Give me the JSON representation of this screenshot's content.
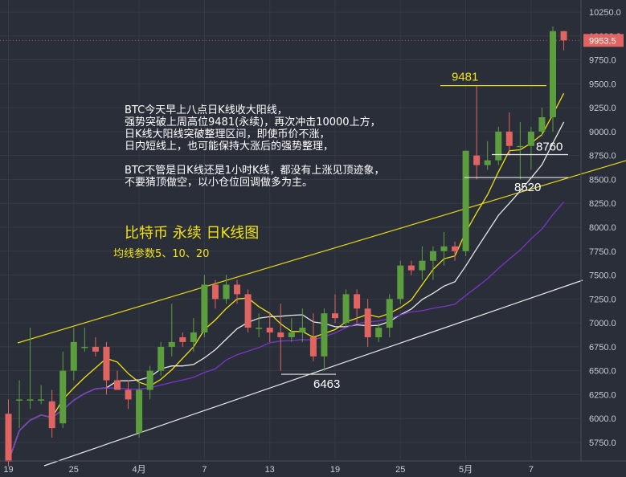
{
  "chart_data": {
    "type": "candlestick",
    "title": "比特币 永续 日K线图",
    "subtitle": "均线参数5、10、20",
    "annotation_lines": [
      "BTC今天早上八点日K线收大阳线，",
      "强势突破上周高位9481(永续)，再次冲击10000上方，",
      "日K线大阳线突破整理区间，即使币价不涨，",
      "日内短线上，也可能保持大涨后的强势整理，",
      "BTC不管是日K线还是1小时K线，都没有上涨见顶迹象，",
      "不要猜顶做空，以小仓位回调做多为主。"
    ],
    "ylim": [
      5500,
      10300
    ],
    "y_ticks": [
      10250,
      10000,
      9750,
      9500,
      9250,
      9000,
      8750,
      8500,
      8250,
      8000,
      7750,
      7500,
      7250,
      7000,
      6750,
      6500,
      6250,
      6000,
      5750
    ],
    "y_tick_labels": [
      "10250.0",
      "10000.0",
      "9750.0",
      "9500.0",
      "9250.0",
      "9000.0",
      "8750.0",
      "8500.0",
      "8250.0",
      "8000.0",
      "7750.0",
      "7500.0",
      "7250.0",
      "7000.0",
      "6750.0",
      "6500.0",
      "6250.0",
      "6000.0",
      "5750.0"
    ],
    "x_tick_labels": [
      {
        "i": 0,
        "label": "19"
      },
      {
        "i": 6,
        "label": "25"
      },
      {
        "i": 12,
        "label": "4月"
      },
      {
        "i": 18,
        "label": "7"
      },
      {
        "i": 24,
        "label": "13"
      },
      {
        "i": 30,
        "label": "19"
      },
      {
        "i": 36,
        "label": "25"
      },
      {
        "i": 42,
        "label": "5月"
      },
      {
        "i": 48,
        "label": "7"
      }
    ],
    "last_price": "9953.5",
    "level_labels": [
      {
        "text": "9481",
        "value": 9481
      },
      {
        "text": "8760",
        "value": 8760
      },
      {
        "text": "8520",
        "value": 8520
      },
      {
        "text": "6463",
        "value": 6463
      }
    ],
    "candles": [
      [
        6050,
        6200,
        5500,
        5550
      ],
      [
        6200,
        6400,
        5900,
        6200
      ],
      [
        6200,
        6950,
        6100,
        6200
      ],
      [
        6200,
        6350,
        6150,
        6200
      ],
      [
        6180,
        6300,
        5800,
        5900
      ],
      [
        5950,
        6700,
        5900,
        6500
      ],
      [
        6500,
        6950,
        6400,
        6800
      ],
      [
        6750,
        6950,
        6700,
        6750
      ],
      [
        6750,
        6850,
        6650,
        6700
      ],
      [
        6750,
        6800,
        6250,
        6400
      ],
      [
        6400,
        6500,
        6300,
        6300
      ],
      [
        6300,
        6400,
        6100,
        6200
      ],
      [
        5850,
        6400,
        5800,
        6300
      ],
      [
        6300,
        6550,
        6200,
        6500
      ],
      [
        6500,
        6800,
        6450,
        6750
      ],
      [
        6750,
        7200,
        6650,
        6800
      ],
      [
        6850,
        6900,
        6750,
        6800
      ],
      [
        6800,
        7050,
        6700,
        6900
      ],
      [
        6900,
        7500,
        6850,
        7400
      ],
      [
        7400,
        7450,
        7150,
        7250
      ],
      [
        7250,
        7500,
        7200,
        7400
      ],
      [
        7400,
        7450,
        7200,
        7300
      ],
      [
        7300,
        7350,
        6900,
        6950
      ],
      [
        6950,
        7100,
        6850,
        6950
      ],
      [
        6950,
        7100,
        6800,
        6900
      ],
      [
        6900,
        7200,
        6500,
        6850
      ],
      [
        6850,
        7050,
        6800,
        6900
      ],
      [
        6900,
        7150,
        6800,
        6950
      ],
      [
        6850,
        7100,
        6600,
        6650
      ],
      [
        6650,
        7150,
        6500,
        7100
      ],
      [
        7100,
        7300,
        7000,
        7050
      ],
      [
        7000,
        7350,
        6950,
        7300
      ],
      [
        7300,
        7350,
        7000,
        7150
      ],
      [
        7150,
        7250,
        6750,
        6850
      ],
      [
        6850,
        7000,
        6800,
        6950
      ],
      [
        6950,
        7300,
        6850,
        7250
      ],
      [
        7250,
        7650,
        7200,
        7600
      ],
      [
        7600,
        7650,
        7500,
        7550
      ],
      [
        7550,
        7800,
        7450,
        7650
      ],
      [
        7650,
        7800,
        7450,
        7750
      ],
      [
        7750,
        7950,
        7600,
        7800
      ],
      [
        7800,
        7850,
        7650,
        7750
      ],
      [
        7750,
        8800,
        7700,
        8800
      ],
      [
        8750,
        9481,
        8500,
        8650
      ],
      [
        8650,
        8900,
        8600,
        8700
      ],
      [
        8700,
        9050,
        8650,
        9000
      ],
      [
        9000,
        9200,
        8750,
        8850
      ],
      [
        8850,
        9100,
        8500,
        8850
      ],
      [
        8850,
        9050,
        8600,
        9000
      ],
      [
        9000,
        9250,
        8950,
        9150
      ],
      [
        9150,
        10100,
        9000,
        10050
      ],
      [
        10050,
        10050,
        9850,
        9953.5
      ]
    ],
    "ma_lines": [
      {
        "name": "MA5",
        "color": "#f2e313"
      },
      {
        "name": "MA10",
        "color": "#e8e8e8"
      },
      {
        "name": "MA20",
        "color": "#7b35c9"
      }
    ],
    "colors": {
      "up": "#5c9e3e",
      "down": "#e06462",
      "background": "#2a2e39",
      "grid": "#363a45"
    }
  }
}
